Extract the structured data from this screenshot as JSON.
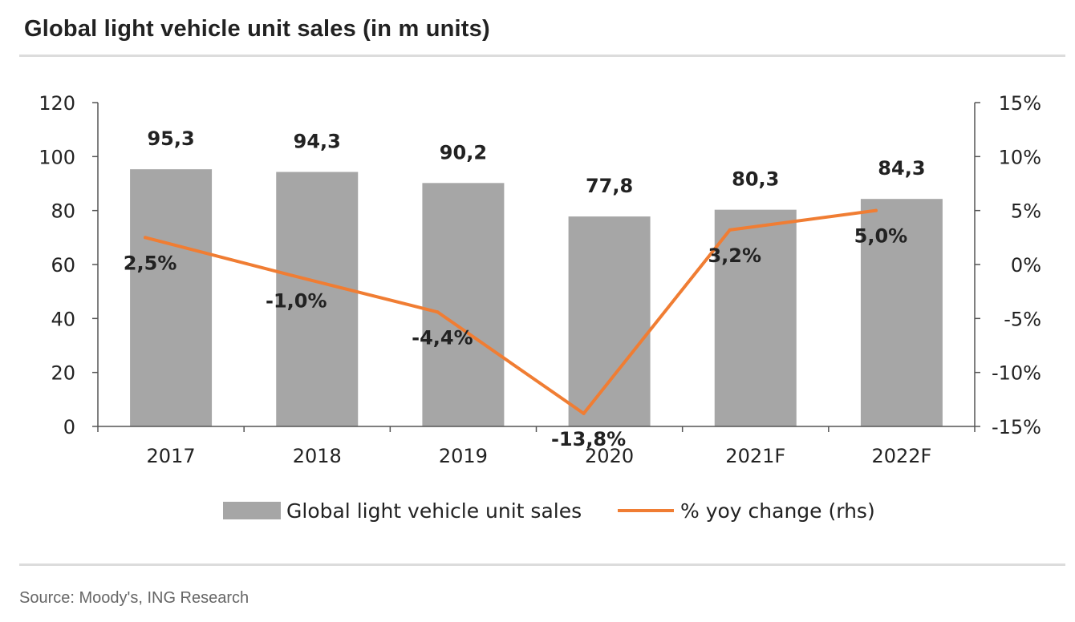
{
  "header": {
    "title": "Global light vehicle unit sales (in m units)"
  },
  "footer": {
    "source": "Source: Moody's, ING Research"
  },
  "colors": {
    "bar": "#a6a6a6",
    "line": "#f07d33",
    "axis": "#555555",
    "rule": "#dcdcdc"
  },
  "chart_data": {
    "type": "bar",
    "title": "Global light vehicle unit sales (in m units)",
    "categories": [
      "2017",
      "2018",
      "2019",
      "2020",
      "2021F",
      "2022F"
    ],
    "series": [
      {
        "name": "Global light vehicle unit sales",
        "type": "bar",
        "axis": "left",
        "values": [
          95.3,
          94.3,
          90.2,
          77.8,
          80.3,
          84.3
        ],
        "labels": [
          "95,3",
          "94,3",
          "90,2",
          "77,8",
          "80,3",
          "84,3"
        ]
      },
      {
        "name": "% yoy change (rhs)",
        "type": "line",
        "axis": "right",
        "values": [
          2.5,
          -1.0,
          -4.4,
          -13.8,
          3.2,
          5.0
        ],
        "labels": [
          "2,5%",
          "-1,0%",
          "-4,4%",
          "-13,8%",
          "3,2%",
          "5,0%"
        ]
      }
    ],
    "y_left": {
      "min": 0,
      "max": 120,
      "ticks": [
        "0",
        "20",
        "40",
        "60",
        "80",
        "100",
        "120"
      ]
    },
    "y_right": {
      "min": -15,
      "max": 15,
      "ticks": [
        "-15%",
        "-10%",
        "-5%",
        "0%",
        "5%",
        "10%",
        "15%"
      ]
    },
    "legend": {
      "position": "bottom",
      "items": [
        "Global light vehicle unit sales",
        "% yoy change (rhs)"
      ]
    },
    "grid": false
  }
}
